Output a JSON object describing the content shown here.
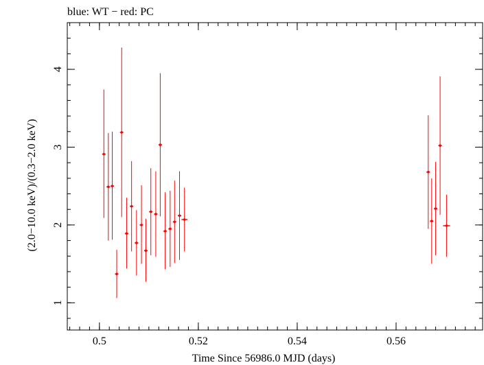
{
  "chart_data": {
    "type": "scatter",
    "title": "blue: WT − red: PC",
    "xlabel": "Time Since 56986.0 MJD (days)",
    "ylabel": "(2.0−10.0 keV)/(0.3−2.0 keV)",
    "xlim": [
      0.4935,
      0.5775
    ],
    "ylim": [
      0.65,
      4.6
    ],
    "x_ticks": [
      {
        "value": 0.5,
        "label": "0.5"
      },
      {
        "value": 0.52,
        "label": "0.52"
      },
      {
        "value": 0.54,
        "label": "0.54"
      },
      {
        "value": 0.56,
        "label": "0.56"
      }
    ],
    "x_minor_step": 0.002,
    "y_ticks": [
      {
        "value": 1,
        "label": "1"
      },
      {
        "value": 2,
        "label": "2"
      },
      {
        "value": 3,
        "label": "3"
      },
      {
        "value": 4,
        "label": "4"
      }
    ],
    "y_minor_step": 0.2,
    "grid": false,
    "series": [
      {
        "color": "#ff0000",
        "points": [
          {
            "x": 0.5009,
            "y": 2.91,
            "yerr_low": 0.82,
            "yerr_high": 0.83,
            "xerr": 0.00035
          },
          {
            "x": 0.5018,
            "y": 2.49,
            "yerr_low": 0.69,
            "yerr_high": 0.69,
            "xerr": 0.00035
          },
          {
            "x": 0.5026,
            "y": 2.5,
            "yerr_low": 0.69,
            "yerr_high": 0.7,
            "xerr": 0.00035
          },
          {
            "x": 0.5035,
            "y": 1.37,
            "yerr_low": 0.31,
            "yerr_high": 0.31,
            "xerr": 0.00035
          },
          {
            "x": 0.5045,
            "y": 3.19,
            "yerr_low": 1.09,
            "yerr_high": 1.09,
            "xerr": 0.00035
          },
          {
            "x": 0.5055,
            "y": 1.89,
            "yerr_low": 0.45,
            "yerr_high": 0.46,
            "xerr": 0.00035
          },
          {
            "x": 0.5065,
            "y": 2.24,
            "yerr_low": 0.58,
            "yerr_high": 0.58,
            "xerr": 0.00035
          },
          {
            "x": 0.5075,
            "y": 1.77,
            "yerr_low": 0.42,
            "yerr_high": 0.42,
            "xerr": 0.00035
          },
          {
            "x": 0.5085,
            "y": 2.0,
            "yerr_low": 0.5,
            "yerr_high": 0.51,
            "xerr": 0.00035
          },
          {
            "x": 0.5094,
            "y": 1.67,
            "yerr_low": 0.4,
            "yerr_high": 0.41,
            "xerr": 0.00035
          },
          {
            "x": 0.5104,
            "y": 2.17,
            "yerr_low": 0.56,
            "yerr_high": 0.56,
            "xerr": 0.00035
          },
          {
            "x": 0.5114,
            "y": 2.14,
            "yerr_low": 0.55,
            "yerr_high": 0.55,
            "xerr": 0.00035
          },
          {
            "x": 0.5123,
            "y": 3.03,
            "yerr_low": 0.92,
            "yerr_high": 0.92,
            "xerr": 0.00035
          },
          {
            "x": 0.5133,
            "y": 1.92,
            "yerr_low": 0.49,
            "yerr_high": 0.5,
            "xerr": 0.00035
          },
          {
            "x": 0.5143,
            "y": 1.95,
            "yerr_low": 0.49,
            "yerr_high": 0.49,
            "xerr": 0.00035
          },
          {
            "x": 0.5152,
            "y": 2.04,
            "yerr_low": 0.53,
            "yerr_high": 0.53,
            "xerr": 0.00035
          },
          {
            "x": 0.5162,
            "y": 2.12,
            "yerr_low": 0.57,
            "yerr_high": 0.57,
            "xerr": 0.00035
          },
          {
            "x": 0.5172,
            "y": 2.07,
            "yerr_low": 0.41,
            "yerr_high": 0.41,
            "xerr": 0.0006
          },
          {
            "x": 0.5665,
            "y": 2.68,
            "yerr_low": 0.73,
            "yerr_high": 0.73,
            "xerr": 0.00035
          },
          {
            "x": 0.5672,
            "y": 2.05,
            "yerr_low": 0.55,
            "yerr_high": 0.55,
            "xerr": 0.00035
          },
          {
            "x": 0.568,
            "y": 2.21,
            "yerr_low": 0.6,
            "yerr_high": 0.6,
            "xerr": 0.00035
          },
          {
            "x": 0.5689,
            "y": 3.02,
            "yerr_low": 0.89,
            "yerr_high": 0.89,
            "xerr": 0.00035
          },
          {
            "x": 0.5702,
            "y": 1.99,
            "yerr_low": 0.4,
            "yerr_high": 0.4,
            "xerr": 0.0007
          }
        ]
      }
    ]
  }
}
